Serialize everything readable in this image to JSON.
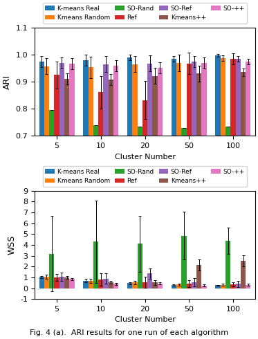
{
  "chart_data": [
    {
      "type": "bar",
      "categories": [
        "5",
        "10",
        "20",
        "50",
        "100"
      ],
      "xlabel": "Cluster Number",
      "ylabel": "ARI",
      "ylim": [
        0.7,
        1.1
      ],
      "yticks": [
        0.7,
        0.8,
        0.9,
        1.0,
        1.1
      ],
      "grid": false,
      "legend": "lower center",
      "series": [
        {
          "name": "K-means Real",
          "values": [
            0.975,
            0.98,
            0.99,
            0.985,
            0.997
          ],
          "errors": [
            0.02,
            0.02,
            0.01,
            0.01,
            0.005
          ]
        },
        {
          "name": "Kmeans Random",
          "values": [
            0.958,
            0.953,
            0.965,
            0.97,
            0.988
          ],
          "errors": [
            0.03,
            0.04,
            0.03,
            0.03,
            0.01
          ]
        },
        {
          "name": "SO-Rand",
          "values": [
            0.795,
            0.74,
            0.735,
            0.73,
            0.735
          ],
          "errors": [
            0.0,
            0.0,
            0.0,
            0.0,
            0.0
          ]
        },
        {
          "name": "Ref",
          "values": [
            0.925,
            0.862,
            0.832,
            0.968,
            0.985
          ],
          "errors": [
            0.05,
            0.06,
            0.07,
            0.04,
            0.02
          ]
        },
        {
          "name": "SO-Ref",
          "values": [
            0.97,
            0.965,
            0.968,
            0.975,
            0.985
          ],
          "errors": [
            0.02,
            0.03,
            0.03,
            0.02,
            0.01
          ]
        },
        {
          "name": "Kmeans++",
          "values": [
            0.91,
            0.908,
            0.922,
            0.93,
            0.935
          ],
          "errors": [
            0.02,
            0.02,
            0.03,
            0.03,
            0.015
          ]
        },
        {
          "name": "SO-++",
          "values": [
            0.967,
            0.96,
            0.952,
            0.97,
            0.975
          ],
          "errors": [
            0.02,
            0.02,
            0.02,
            0.02,
            0.01
          ]
        }
      ]
    },
    {
      "type": "bar",
      "categories": [
        "5",
        "10",
        "20",
        "50",
        "100"
      ],
      "xlabel": "Cluster Number",
      "ylabel": "WSS",
      "ylim": [
        -1,
        9
      ],
      "yticks": [
        -1,
        0,
        1,
        2,
        3,
        4,
        5,
        6,
        7,
        8,
        9
      ],
      "grid": false,
      "legend": "lower center",
      "annotations": [
        "Fig. 4 (a).  ARI results for one run of each algorithm"
      ],
      "series": [
        {
          "name": "K-means Real",
          "values": [
            1.05,
            0.7,
            0.47,
            0.3,
            0.27
          ],
          "errors": [
            0.1,
            0.15,
            0.1,
            0.05,
            0.05
          ]
        },
        {
          "name": "Kmeans Random",
          "values": [
            1.05,
            0.68,
            0.52,
            0.35,
            0.3
          ],
          "errors": [
            0.2,
            0.2,
            0.15,
            0.1,
            0.1
          ]
        },
        {
          "name": "SO-Rand",
          "values": [
            3.2,
            4.3,
            4.1,
            4.85,
            4.4
          ],
          "errors": [
            3.5,
            3.8,
            2.6,
            2.2,
            1.2
          ]
        },
        {
          "name": "Ref",
          "values": [
            1.0,
            0.8,
            0.55,
            0.42,
            0.35
          ],
          "errors": [
            0.3,
            0.6,
            0.5,
            0.3,
            0.2
          ]
        },
        {
          "name": "SO-Ref",
          "values": [
            1.05,
            0.9,
            1.35,
            0.55,
            0.4
          ],
          "errors": [
            0.4,
            0.5,
            0.5,
            0.4,
            0.3
          ]
        },
        {
          "name": "Kmeans++",
          "values": [
            1.0,
            0.55,
            0.52,
            2.15,
            2.55
          ],
          "errors": [
            0.1,
            0.1,
            0.2,
            0.5,
            0.5
          ]
        },
        {
          "name": "SO-++",
          "values": [
            0.85,
            0.4,
            0.45,
            0.25,
            0.3
          ],
          "errors": [
            0.1,
            0.08,
            0.1,
            0.1,
            0.1
          ]
        }
      ]
    }
  ]
}
